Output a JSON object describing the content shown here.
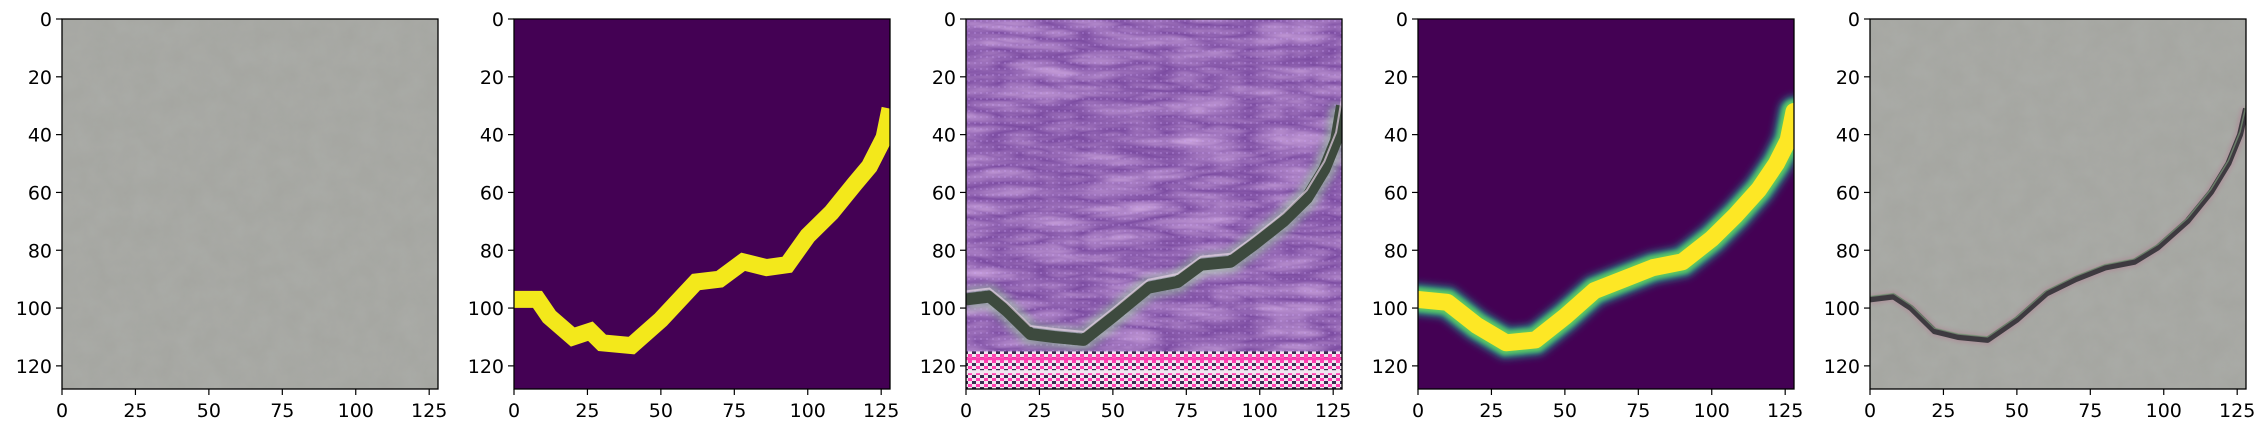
{
  "chart_data": [
    {
      "type": "heatmap",
      "content": "image-input-texture",
      "xlim": [
        0,
        128
      ],
      "ylim": [
        128,
        0
      ],
      "xticks": [
        0,
        25,
        50,
        75,
        100,
        125
      ],
      "yticks": [
        0,
        20,
        40,
        60,
        80,
        100,
        120
      ],
      "colors": {
        "base": "#a4a5a0",
        "shade": "#8c8d88"
      }
    },
    {
      "type": "heatmap",
      "content": "binary-crack-mask",
      "xlim": [
        0,
        128
      ],
      "ylim": [
        128,
        0
      ],
      "xticks": [
        0,
        25,
        50,
        75,
        100,
        125
      ],
      "yticks": [
        0,
        20,
        40,
        60,
        80,
        100,
        120
      ],
      "colors": {
        "background": "#440154",
        "crack": "#f3e81b"
      },
      "crack_path": [
        [
          0,
          97
        ],
        [
          8,
          97
        ],
        [
          12,
          103
        ],
        [
          20,
          110
        ],
        [
          26,
          108
        ],
        [
          30,
          112
        ],
        [
          40,
          113
        ],
        [
          50,
          104
        ],
        [
          62,
          91
        ],
        [
          70,
          90
        ],
        [
          78,
          84
        ],
        [
          86,
          86
        ],
        [
          93,
          85
        ],
        [
          100,
          75
        ],
        [
          108,
          67
        ],
        [
          116,
          57
        ],
        [
          121,
          51
        ],
        [
          126,
          41
        ],
        [
          128,
          31
        ]
      ]
    },
    {
      "type": "heatmap",
      "content": "generated-purple-texture-with-crack",
      "xlim": [
        0,
        128
      ],
      "ylim": [
        128,
        0
      ],
      "xticks": [
        0,
        25,
        50,
        75,
        100,
        125
      ],
      "yticks": [
        0,
        20,
        40,
        60,
        80,
        100,
        120
      ],
      "colors": {
        "background": "#7a4aa0",
        "streak": "#b07ad0",
        "crack": "#3d4a3e",
        "crack_edge": "#9acf9a",
        "band_pink": "#ff3fb0",
        "band_light": "#f0e8f0"
      },
      "crack_path": [
        [
          0,
          97
        ],
        [
          8,
          96
        ],
        [
          14,
          101
        ],
        [
          22,
          109
        ],
        [
          30,
          110
        ],
        [
          40,
          111
        ],
        [
          50,
          103
        ],
        [
          62,
          93
        ],
        [
          72,
          91
        ],
        [
          80,
          85
        ],
        [
          90,
          84
        ],
        [
          98,
          78
        ],
        [
          108,
          70
        ],
        [
          116,
          62
        ],
        [
          122,
          52
        ],
        [
          126,
          42
        ],
        [
          128,
          30
        ]
      ]
    },
    {
      "type": "heatmap",
      "content": "smooth-crack-probability-map",
      "xlim": [
        0,
        128
      ],
      "ylim": [
        128,
        0
      ],
      "xticks": [
        0,
        25,
        50,
        75,
        100,
        125
      ],
      "yticks": [
        0,
        20,
        40,
        60,
        80,
        100,
        120
      ],
      "colors": {
        "background": "#440154",
        "edge": "#21918c",
        "mid": "#5ec962",
        "core": "#fde725"
      },
      "crack_path": [
        [
          0,
          97
        ],
        [
          10,
          98
        ],
        [
          20,
          106
        ],
        [
          30,
          112
        ],
        [
          40,
          111
        ],
        [
          50,
          103
        ],
        [
          60,
          94
        ],
        [
          70,
          90
        ],
        [
          80,
          86
        ],
        [
          90,
          84
        ],
        [
          100,
          76
        ],
        [
          108,
          68
        ],
        [
          116,
          59
        ],
        [
          122,
          50
        ],
        [
          126,
          42
        ],
        [
          128,
          32
        ]
      ]
    },
    {
      "type": "heatmap",
      "content": "texture-with-overlaid-crack",
      "xlim": [
        0,
        128
      ],
      "ylim": [
        128,
        0
      ],
      "xticks": [
        0,
        25,
        50,
        75,
        100,
        125
      ],
      "yticks": [
        0,
        20,
        40,
        60,
        80,
        100,
        120
      ],
      "colors": {
        "base": "#a4a5a0",
        "shade": "#8c8d88",
        "crack": "#3e3a40"
      },
      "crack_path": [
        [
          0,
          97
        ],
        [
          8,
          96
        ],
        [
          14,
          100
        ],
        [
          22,
          108
        ],
        [
          30,
          110
        ],
        [
          40,
          111
        ],
        [
          50,
          104
        ],
        [
          60,
          95
        ],
        [
          70,
          90
        ],
        [
          80,
          86
        ],
        [
          90,
          84
        ],
        [
          98,
          79
        ],
        [
          108,
          70
        ],
        [
          116,
          60
        ],
        [
          122,
          50
        ],
        [
          126,
          40
        ],
        [
          128,
          31
        ]
      ]
    }
  ]
}
